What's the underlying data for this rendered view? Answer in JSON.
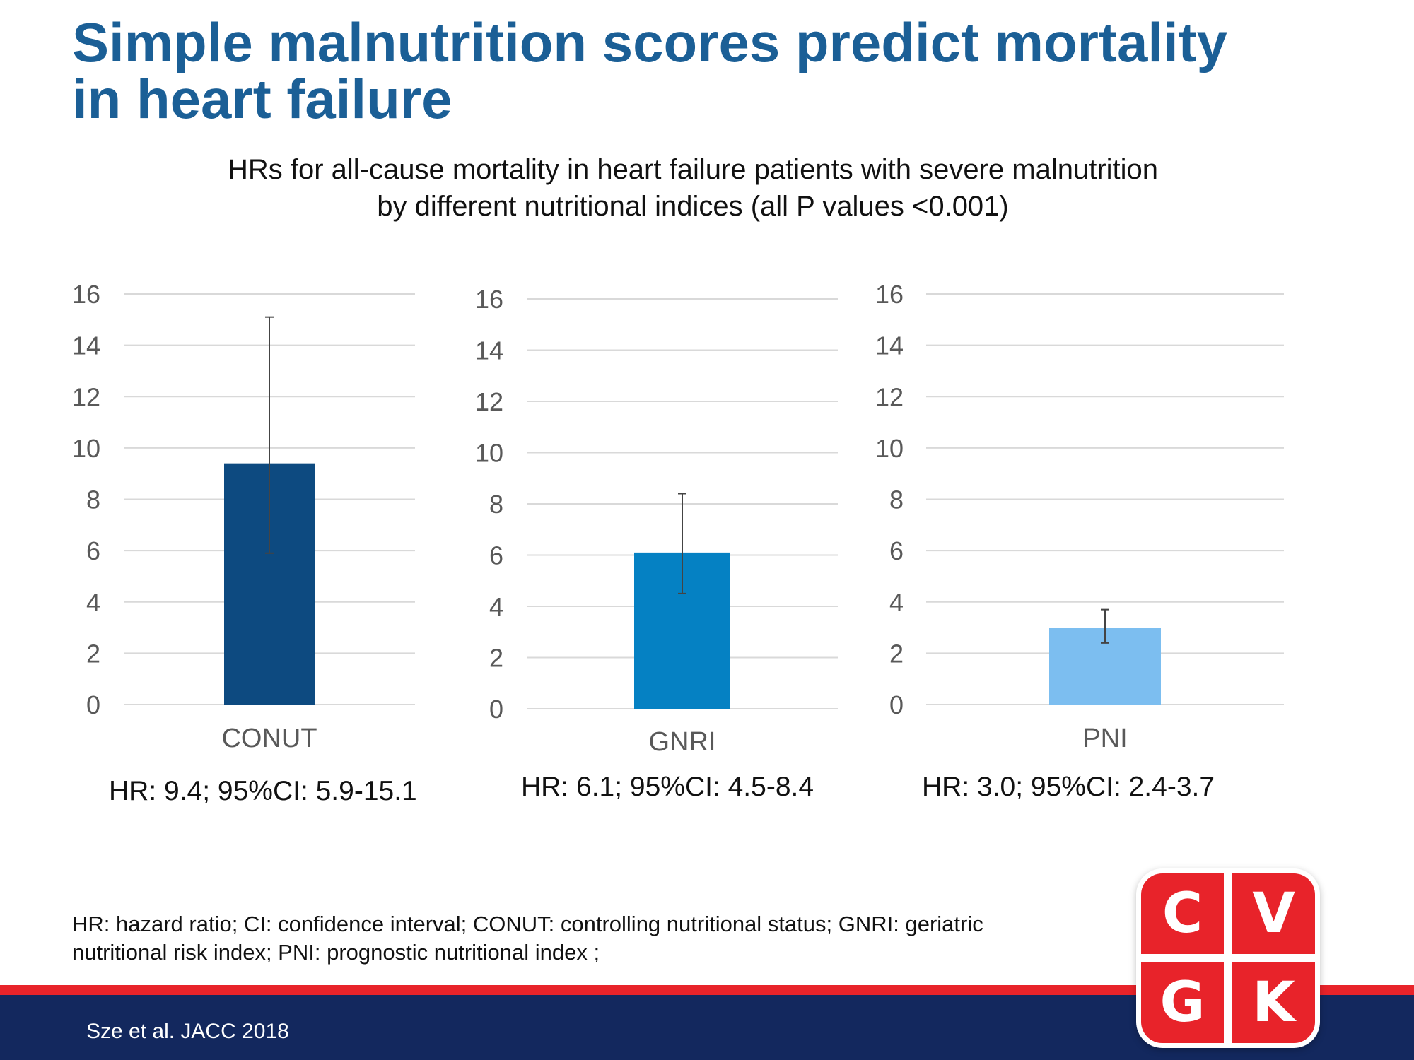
{
  "slide": {
    "title_lines": [
      "Simple malnutrition scores predict mortality",
      "in heart failure"
    ],
    "subtitle_lines": [
      "HRs for all-cause mortality in heart failure patients with severe malnutrition",
      "by different nutritional indices (all P values <0.001)"
    ],
    "footnote_lines": [
      "HR: hazard ratio; CI: confidence interval; CONUT: controlling nutritional status; GNRI: geriatric",
      "nutritional risk index; PNI: prognostic nutritional index ;"
    ],
    "citation": "Sze et al. JACC 2018",
    "logo": {
      "letters": [
        "C",
        "V",
        "G",
        "K"
      ],
      "color": "#e8232a"
    }
  },
  "chart_data": [
    {
      "type": "bar",
      "categories": [
        "CONUT"
      ],
      "values": [
        9.4
      ],
      "ci_lower": [
        5.9
      ],
      "ci_upper": [
        15.1
      ],
      "ylim": [
        0,
        16
      ],
      "yticks": [
        0,
        2,
        4,
        6,
        8,
        10,
        12,
        14,
        16
      ],
      "grid": true,
      "color": "#0d4a80",
      "annotation": "HR: 9.4; 95%CI: 5.9-15.1"
    },
    {
      "type": "bar",
      "categories": [
        "GNRI"
      ],
      "values": [
        6.1
      ],
      "ci_lower": [
        4.5
      ],
      "ci_upper": [
        8.4
      ],
      "ylim": [
        0,
        16
      ],
      "yticks": [
        0,
        2,
        4,
        6,
        8,
        10,
        12,
        14,
        16
      ],
      "grid": true,
      "color": "#0581c3",
      "annotation": "HR: 6.1; 95%CI: 4.5-8.4"
    },
    {
      "type": "bar",
      "categories": [
        "PNI"
      ],
      "values": [
        3.0
      ],
      "ci_lower": [
        2.4
      ],
      "ci_upper": [
        3.7
      ],
      "ylim": [
        0,
        16
      ],
      "yticks": [
        0,
        2,
        4,
        6,
        8,
        10,
        12,
        14,
        16
      ],
      "grid": true,
      "color": "#7cbef0",
      "annotation": "HR: 3.0; 95%CI: 2.4-3.7"
    }
  ]
}
